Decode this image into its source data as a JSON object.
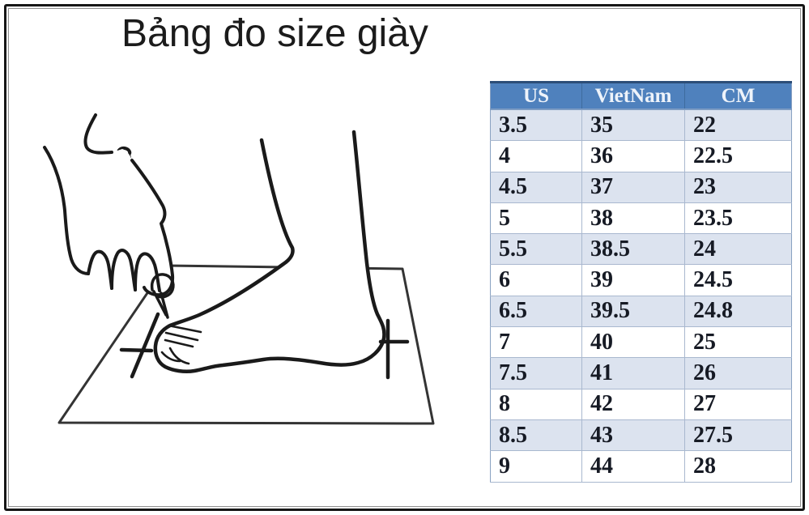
{
  "page": {
    "title": "Bảng đo size giày"
  },
  "size_table": {
    "columns": [
      "US",
      "VietNam",
      "CM"
    ],
    "rows": [
      [
        "3.5",
        "35",
        "22"
      ],
      [
        "4",
        "36",
        "22.5"
      ],
      [
        "4.5",
        "37",
        "23"
      ],
      [
        "5",
        "38",
        "23.5"
      ],
      [
        "5.5",
        "38.5",
        "24"
      ],
      [
        "6",
        "39",
        "24.5"
      ],
      [
        "6.5",
        "39.5",
        "24.8"
      ],
      [
        "7",
        "40",
        "25"
      ],
      [
        "7.5",
        "41",
        "26"
      ],
      [
        "8",
        "42",
        "27"
      ],
      [
        "8.5",
        "43",
        "27.5"
      ],
      [
        "9",
        "44",
        "28"
      ]
    ],
    "colors": {
      "header_bg": "#4f81bd",
      "header_text": "#eef3fa",
      "header_top_border": "#2c4d77",
      "alt_row_bg": "#dce3ef",
      "grid_border": "#a9b8cf",
      "cell_text": "#161a24"
    }
  },
  "illustration": {
    "description": "Line drawing of a hand holding a pen tracing the outline of a bare foot standing on a sheet of paper, with cross tick marks at the toe and heel",
    "marks": [
      "toe-cross-mark",
      "heel-cross-mark"
    ]
  },
  "chart_data": {
    "type": "table",
    "title": "Bảng đo size giày",
    "columns": [
      "US",
      "VietNam",
      "CM"
    ],
    "rows": [
      [
        "3.5",
        "35",
        "22"
      ],
      [
        "4",
        "36",
        "22.5"
      ],
      [
        "4.5",
        "37",
        "23"
      ],
      [
        "5",
        "38",
        "23.5"
      ],
      [
        "5.5",
        "38.5",
        "24"
      ],
      [
        "6",
        "39",
        "24.5"
      ],
      [
        "6.5",
        "39.5",
        "24.8"
      ],
      [
        "7",
        "40",
        "25"
      ],
      [
        "7.5",
        "41",
        "26"
      ],
      [
        "8",
        "42",
        "27"
      ],
      [
        "8.5",
        "43",
        "27.5"
      ],
      [
        "9",
        "44",
        "28"
      ]
    ]
  }
}
